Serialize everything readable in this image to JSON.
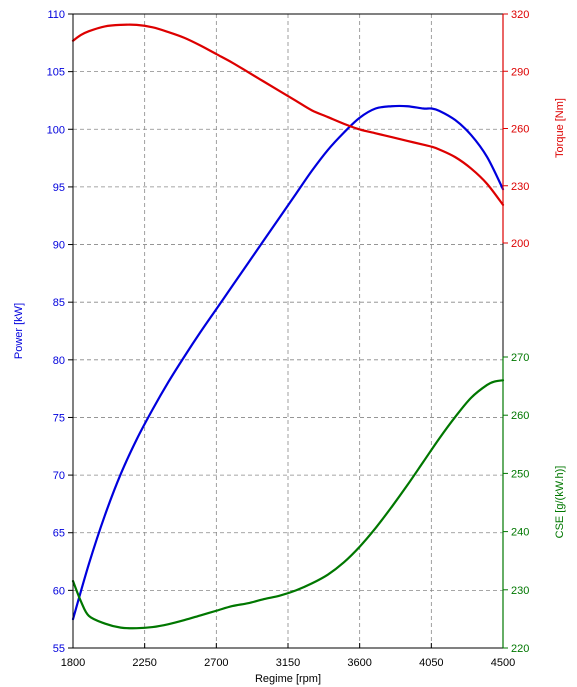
{
  "chart_data": {
    "type": "line",
    "xlabel": "Regime [rpm]",
    "xlim": [
      1800,
      4500
    ],
    "x_ticks": [
      1800,
      2250,
      2700,
      3150,
      3600,
      4050,
      4500
    ],
    "grid": true,
    "axes": {
      "power": {
        "label": "Power [kW]",
        "ylim": [
          55,
          110
        ],
        "ticks": [
          55,
          60,
          65,
          70,
          75,
          80,
          85,
          90,
          95,
          100,
          105,
          110
        ],
        "color": "#0000dd"
      },
      "torque": {
        "label": "Torque [Nm]",
        "ylim": [
          200,
          320
        ],
        "ticks": [
          200,
          230,
          260,
          290,
          320
        ],
        "color": "#dd0000"
      },
      "cse": {
        "label": "CSE [g/(kW.h)]",
        "ylim": [
          220,
          270
        ],
        "ticks": [
          220,
          230,
          240,
          250,
          260,
          270
        ],
        "color": "#007700"
      }
    },
    "series": [
      {
        "axis": "power",
        "color": "#0000dd",
        "x": [
          1800,
          1900,
          2000,
          2100,
          2200,
          2300,
          2400,
          2500,
          2600,
          2700,
          2800,
          2900,
          3000,
          3100,
          3200,
          3300,
          3400,
          3500,
          3600,
          3700,
          3800,
          3900,
          4000,
          4050,
          4100,
          4200,
          4300,
          4400,
          4500
        ],
        "values": [
          57.5,
          62.3,
          66.5,
          70.1,
          73.1,
          75.7,
          78.1,
          80.3,
          82.4,
          84.4,
          86.4,
          88.4,
          90.4,
          92.4,
          94.4,
          96.4,
          98.2,
          99.7,
          101.0,
          101.8,
          102.0,
          102.0,
          101.8,
          101.8,
          101.6,
          100.8,
          99.5,
          97.6,
          94.8
        ]
      },
      {
        "axis": "torque",
        "color": "#dd0000",
        "x": [
          1800,
          1850,
          1900,
          2000,
          2100,
          2200,
          2300,
          2400,
          2500,
          2600,
          2700,
          2800,
          2900,
          3000,
          3100,
          3200,
          3300,
          3400,
          3500,
          3600,
          3700,
          3800,
          3900,
          4000,
          4050,
          4100,
          4200,
          4300,
          4400,
          4500
        ],
        "values": [
          306,
          309,
          311,
          313.5,
          314.3,
          314.3,
          313,
          310.5,
          307.5,
          303.5,
          299,
          294.5,
          289.5,
          284.5,
          279.5,
          274.5,
          269.5,
          266,
          262.5,
          259.5,
          257.5,
          255.5,
          253.5,
          251.5,
          250.5,
          249,
          245,
          239,
          231,
          220
        ]
      },
      {
        "axis": "cse",
        "color": "#007700",
        "x": [
          1800,
          1850,
          1900,
          2000,
          2100,
          2200,
          2300,
          2400,
          2500,
          2600,
          2700,
          2800,
          2900,
          3000,
          3100,
          3200,
          3300,
          3400,
          3500,
          3600,
          3700,
          3800,
          3900,
          4000,
          4100,
          4200,
          4300,
          4400,
          4450,
          4500
        ],
        "values": [
          231.5,
          228,
          225.5,
          224.2,
          223.5,
          223.4,
          223.6,
          224.1,
          224.8,
          225.6,
          226.4,
          227.2,
          227.7,
          228.4,
          229.0,
          229.9,
          231.1,
          232.6,
          234.7,
          237.4,
          240.6,
          244.2,
          248.0,
          252.0,
          256.0,
          259.7,
          263.0,
          265.2,
          265.8,
          266.0
        ]
      }
    ]
  }
}
